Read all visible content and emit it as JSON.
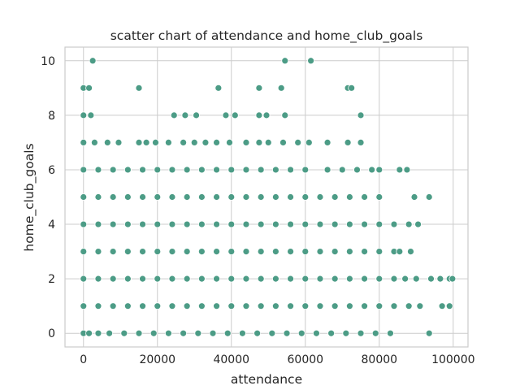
{
  "chart_data": {
    "type": "scatter",
    "title": "scatter chart of attendance and home_club_goals",
    "xlabel": "attendance",
    "ylabel": "home_club_goals",
    "xlim": [
      -5000,
      104000
    ],
    "ylim": [
      -0.5,
      10.5
    ],
    "xticks": [
      0,
      20000,
      40000,
      60000,
      80000,
      100000
    ],
    "xtick_labels": [
      "0",
      "20000",
      "40000",
      "60000",
      "80000",
      "100000"
    ],
    "yticks": [
      0,
      2,
      4,
      6,
      8,
      10
    ],
    "ytick_labels": [
      "0",
      "2",
      "4",
      "6",
      "8",
      "10"
    ],
    "grid": true,
    "color": "#4c9c86",
    "points": [
      [
        0,
        0
      ],
      [
        1500,
        0
      ],
      [
        4000,
        0
      ],
      [
        7000,
        0
      ],
      [
        11000,
        0
      ],
      [
        15000,
        0
      ],
      [
        19000,
        0
      ],
      [
        23000,
        0
      ],
      [
        27000,
        0
      ],
      [
        31000,
        0
      ],
      [
        35000,
        0
      ],
      [
        39000,
        0
      ],
      [
        43000,
        0
      ],
      [
        47000,
        0
      ],
      [
        51000,
        0
      ],
      [
        55000,
        0
      ],
      [
        59000,
        0
      ],
      [
        63000,
        0
      ],
      [
        67000,
        0
      ],
      [
        71000,
        0
      ],
      [
        75000,
        0
      ],
      [
        79000,
        0
      ],
      [
        83000,
        0
      ],
      [
        93500,
        0
      ],
      [
        0,
        1
      ],
      [
        4000,
        1
      ],
      [
        8000,
        1
      ],
      [
        12000,
        1
      ],
      [
        16000,
        1
      ],
      [
        20000,
        1
      ],
      [
        24000,
        1
      ],
      [
        28000,
        1
      ],
      [
        32000,
        1
      ],
      [
        36000,
        1
      ],
      [
        40000,
        1
      ],
      [
        44000,
        1
      ],
      [
        48000,
        1
      ],
      [
        52000,
        1
      ],
      [
        56000,
        1
      ],
      [
        60000,
        1
      ],
      [
        64000,
        1
      ],
      [
        68000,
        1
      ],
      [
        72000,
        1
      ],
      [
        76000,
        1
      ],
      [
        80000,
        1
      ],
      [
        84000,
        1
      ],
      [
        88000,
        1
      ],
      [
        91000,
        1
      ],
      [
        97000,
        1
      ],
      [
        99000,
        1
      ],
      [
        0,
        2
      ],
      [
        4000,
        2
      ],
      [
        8000,
        2
      ],
      [
        12000,
        2
      ],
      [
        16000,
        2
      ],
      [
        20000,
        2
      ],
      [
        24000,
        2
      ],
      [
        28000,
        2
      ],
      [
        32000,
        2
      ],
      [
        36000,
        2
      ],
      [
        40000,
        2
      ],
      [
        44000,
        2
      ],
      [
        48000,
        2
      ],
      [
        52000,
        2
      ],
      [
        56000,
        2
      ],
      [
        60000,
        2
      ],
      [
        64000,
        2
      ],
      [
        68000,
        2
      ],
      [
        72000,
        2
      ],
      [
        76000,
        2
      ],
      [
        80000,
        2
      ],
      [
        84000,
        2
      ],
      [
        87000,
        2
      ],
      [
        90000,
        2
      ],
      [
        94000,
        2
      ],
      [
        96500,
        2
      ],
      [
        99000,
        2
      ],
      [
        99800,
        2
      ],
      [
        0,
        3
      ],
      [
        4000,
        3
      ],
      [
        8000,
        3
      ],
      [
        12000,
        3
      ],
      [
        16000,
        3
      ],
      [
        20000,
        3
      ],
      [
        24000,
        3
      ],
      [
        28000,
        3
      ],
      [
        32000,
        3
      ],
      [
        36000,
        3
      ],
      [
        40000,
        3
      ],
      [
        44000,
        3
      ],
      [
        48000,
        3
      ],
      [
        52000,
        3
      ],
      [
        56000,
        3
      ],
      [
        60000,
        3
      ],
      [
        64000,
        3
      ],
      [
        68000,
        3
      ],
      [
        72000,
        3
      ],
      [
        76000,
        3
      ],
      [
        80000,
        3
      ],
      [
        84000,
        3
      ],
      [
        85500,
        3
      ],
      [
        88500,
        3
      ],
      [
        0,
        4
      ],
      [
        4000,
        4
      ],
      [
        8000,
        4
      ],
      [
        12000,
        4
      ],
      [
        16000,
        4
      ],
      [
        20000,
        4
      ],
      [
        24000,
        4
      ],
      [
        28000,
        4
      ],
      [
        32000,
        4
      ],
      [
        36000,
        4
      ],
      [
        40000,
        4
      ],
      [
        44000,
        4
      ],
      [
        48000,
        4
      ],
      [
        52000,
        4
      ],
      [
        56000,
        4
      ],
      [
        60000,
        4
      ],
      [
        64000,
        4
      ],
      [
        68000,
        4
      ],
      [
        72000,
        4
      ],
      [
        76000,
        4
      ],
      [
        80000,
        4
      ],
      [
        84000,
        4
      ],
      [
        88000,
        4
      ],
      [
        90500,
        4
      ],
      [
        0,
        5
      ],
      [
        4000,
        5
      ],
      [
        8000,
        5
      ],
      [
        12000,
        5
      ],
      [
        16000,
        5
      ],
      [
        20000,
        5
      ],
      [
        24000,
        5
      ],
      [
        28000,
        5
      ],
      [
        32000,
        5
      ],
      [
        36000,
        5
      ],
      [
        40000,
        5
      ],
      [
        44000,
        5
      ],
      [
        48000,
        5
      ],
      [
        52000,
        5
      ],
      [
        56000,
        5
      ],
      [
        60000,
        5
      ],
      [
        64000,
        5
      ],
      [
        68000,
        5
      ],
      [
        72000,
        5
      ],
      [
        76000,
        5
      ],
      [
        80000,
        5
      ],
      [
        89500,
        5
      ],
      [
        93500,
        5
      ],
      [
        0,
        6
      ],
      [
        4000,
        6
      ],
      [
        8000,
        6
      ],
      [
        12000,
        6
      ],
      [
        16000,
        6
      ],
      [
        20000,
        6
      ],
      [
        24000,
        6
      ],
      [
        28000,
        6
      ],
      [
        32000,
        6
      ],
      [
        36000,
        6
      ],
      [
        40000,
        6
      ],
      [
        44000,
        6
      ],
      [
        48000,
        6
      ],
      [
        52000,
        6
      ],
      [
        56000,
        6
      ],
      [
        60000,
        6
      ],
      [
        66000,
        6
      ],
      [
        70000,
        6
      ],
      [
        74000,
        6
      ],
      [
        78000,
        6
      ],
      [
        80000,
        6
      ],
      [
        85500,
        6
      ],
      [
        87500,
        6
      ],
      [
        0,
        7
      ],
      [
        3000,
        7
      ],
      [
        6500,
        7
      ],
      [
        9500,
        7
      ],
      [
        15000,
        7
      ],
      [
        17000,
        7
      ],
      [
        19500,
        7
      ],
      [
        23000,
        7
      ],
      [
        27000,
        7
      ],
      [
        30000,
        7
      ],
      [
        33000,
        7
      ],
      [
        36000,
        7
      ],
      [
        39500,
        7
      ],
      [
        44000,
        7
      ],
      [
        47500,
        7
      ],
      [
        50000,
        7
      ],
      [
        54000,
        7
      ],
      [
        58000,
        7
      ],
      [
        61000,
        7
      ],
      [
        66000,
        7
      ],
      [
        71500,
        7
      ],
      [
        75000,
        7
      ],
      [
        0,
        8
      ],
      [
        2000,
        8
      ],
      [
        24500,
        8
      ],
      [
        27500,
        8
      ],
      [
        30500,
        8
      ],
      [
        38500,
        8
      ],
      [
        41000,
        8
      ],
      [
        47500,
        8
      ],
      [
        49500,
        8
      ],
      [
        54500,
        8
      ],
      [
        75000,
        8
      ],
      [
        0,
        9
      ],
      [
        1500,
        9
      ],
      [
        15000,
        9
      ],
      [
        36500,
        9
      ],
      [
        47500,
        9
      ],
      [
        53500,
        9
      ],
      [
        71500,
        9
      ],
      [
        72500,
        9
      ],
      [
        2500,
        10
      ],
      [
        54500,
        10
      ],
      [
        61500,
        10
      ]
    ]
  }
}
